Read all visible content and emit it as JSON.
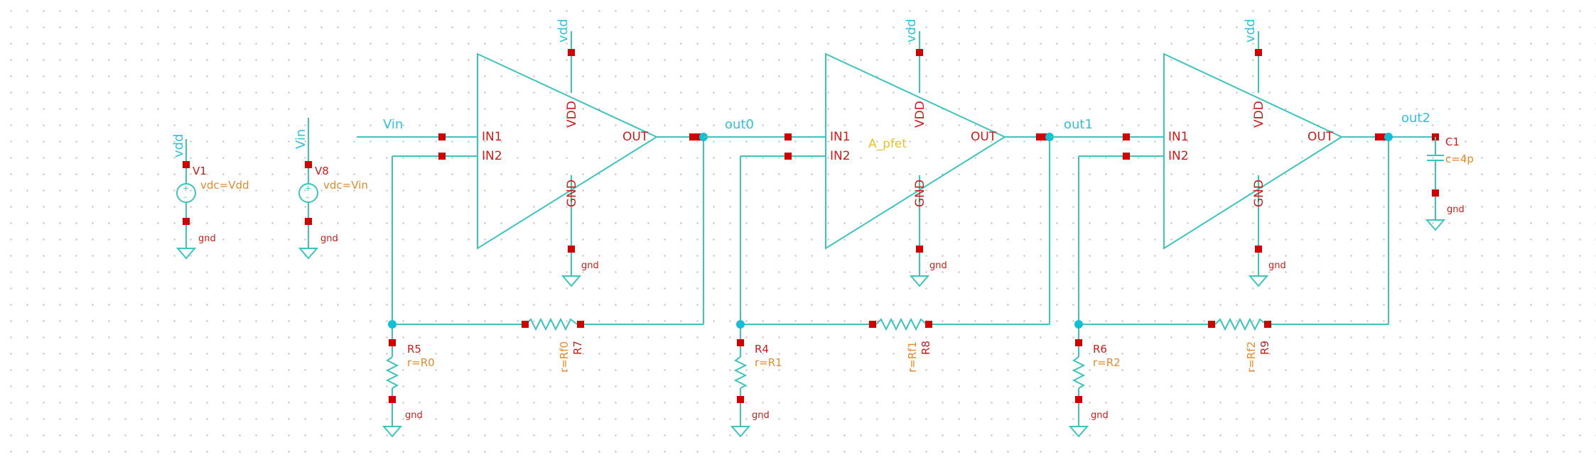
{
  "colors": {
    "wire": "#3ec4bb",
    "pin": "#d00000",
    "node": "#12c0d6",
    "pin_label": "#c81c1c",
    "net_label": "#2fc3d8",
    "property": "#e38a2a",
    "cell_name": "#e6c229"
  },
  "amplifiers": [
    {
      "in1": "IN1",
      "in2": "IN2",
      "out": "OUT",
      "vdd": "VDD",
      "gnd": "GND",
      "vdd_net": "vdd",
      "gnd_net": "gnd"
    },
    {
      "in1": "IN1",
      "in2": "IN2",
      "out": "OUT",
      "vdd": "VDD",
      "gnd": "GND",
      "vdd_net": "vdd",
      "gnd_net": "gnd",
      "cell_name": "A_pfet"
    },
    {
      "in1": "IN1",
      "in2": "IN2",
      "out": "OUT",
      "vdd": "VDD",
      "gnd": "GND",
      "vdd_net": "vdd",
      "gnd_net": "gnd"
    }
  ],
  "nets": {
    "vin": "Vin",
    "out0": "out0",
    "out1": "out1",
    "out2": "out2"
  },
  "sources": [
    {
      "name": "V1",
      "value": "vdc=Vdd",
      "top_net": "vdd",
      "gnd_net": "gnd"
    },
    {
      "name": "V8",
      "value": "vdc=Vin",
      "top_net": "Vin",
      "gnd_net": "gnd"
    }
  ],
  "ground_resistors": [
    {
      "name": "R5",
      "value": "r=R0",
      "gnd_net": "gnd"
    },
    {
      "name": "R4",
      "value": "r=R1",
      "gnd_net": "gnd"
    },
    {
      "name": "R6",
      "value": "r=R2",
      "gnd_net": "gnd"
    }
  ],
  "feedback_resistors": [
    {
      "name": "R7",
      "value": "r=Rf0"
    },
    {
      "name": "R8",
      "value": "r=Rf1"
    },
    {
      "name": "R9",
      "value": "r=Rf2"
    }
  ],
  "capacitor": {
    "name": "C1",
    "value": "c=4p",
    "gnd_net": "gnd"
  }
}
